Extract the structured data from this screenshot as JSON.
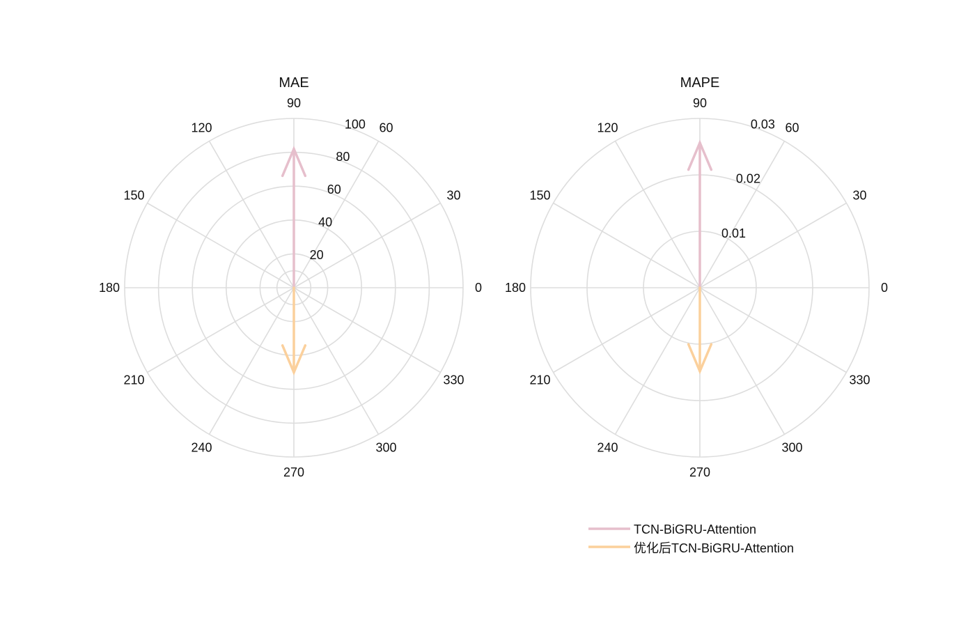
{
  "chart_data": [
    {
      "type": "compass",
      "title": "MAE",
      "angle_ticks": [
        0,
        30,
        60,
        90,
        120,
        150,
        180,
        210,
        240,
        270,
        300,
        330
      ],
      "radius_ticks": [
        20,
        40,
        60,
        80,
        100
      ],
      "radius_tick_labels": [
        "20",
        "40",
        "60",
        "80",
        "100"
      ],
      "rmax": 100,
      "grid": true,
      "series": [
        {
          "name": "TCN-BiGRU-Attention",
          "angle": 90,
          "value": 82,
          "color": "#e6bfcc"
        },
        {
          "name": "优化后TCN-BiGRU-Attention",
          "angle": 270,
          "value": 50,
          "color": "#fbd09c"
        }
      ]
    },
    {
      "type": "compass",
      "title": "MAPE",
      "angle_ticks": [
        0,
        30,
        60,
        90,
        120,
        150,
        180,
        210,
        240,
        270,
        300,
        330
      ],
      "radius_ticks": [
        0.01,
        0.02,
        0.03
      ],
      "radius_tick_labels": [
        "0.01",
        "0.02",
        "0.03"
      ],
      "rmax": 0.03,
      "grid": true,
      "series": [
        {
          "name": "TCN-BiGRU-Attention",
          "angle": 90,
          "value": 0.0257,
          "color": "#e6bfcc"
        },
        {
          "name": "优化后TCN-BiGRU-Attention",
          "angle": 270,
          "value": 0.0148,
          "color": "#fbd09c"
        }
      ]
    }
  ],
  "legend": {
    "placement": "bottom-right",
    "items": [
      {
        "label": "TCN-BiGRU-Attention",
        "color": "#e6bfcc"
      },
      {
        "label": "优化后TCN-BiGRU-Attention",
        "color": "#fbd09c"
      }
    ]
  }
}
